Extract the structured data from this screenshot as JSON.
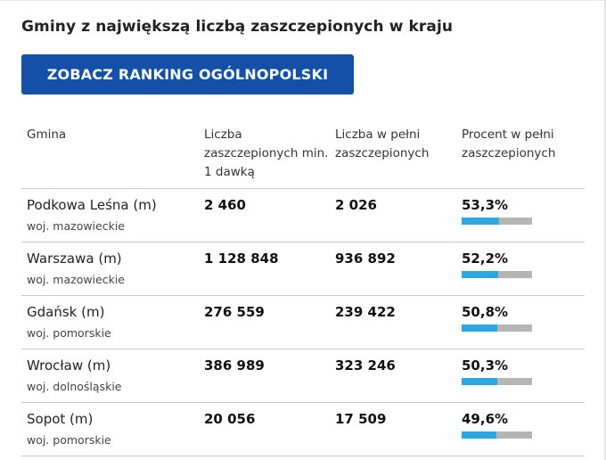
{
  "title": "Gminy z największą liczbą zaszczepionych w kraju",
  "button_label": "ZOBACZ RANKING OGÓLNOPOLSKI",
  "columns": [
    "Gmina",
    "Liczba zaszczepionych min. 1 dawką",
    "Liczba w pełni zaszczepionych",
    "Procent w pełni zaszczepionych"
  ],
  "rows": [
    {
      "gmina": "Podkowa Leśna (m)",
      "woj": "woj. mazowieckie",
      "dose1": "2 460",
      "full": "2 026",
      "percent": "53,3%",
      "fraction": 0.533
    },
    {
      "gmina": "Warszawa (m)",
      "woj": "woj. mazowieckie",
      "dose1": "1 128 848",
      "full": "936 892",
      "percent": "52,2%",
      "fraction": 0.522
    },
    {
      "gmina": "Gdańsk (m)",
      "woj": "woj. pomorskie",
      "dose1": "276 559",
      "full": "239 422",
      "percent": "50,8%",
      "fraction": 0.508
    },
    {
      "gmina": "Wrocław (m)",
      "woj": "woj. dolnośląskie",
      "dose1": "386 989",
      "full": "323 246",
      "percent": "50,3%",
      "fraction": 0.503
    },
    {
      "gmina": "Sopot (m)",
      "woj": "woj. pomorskie",
      "dose1": "20 056",
      "full": "17 509",
      "percent": "49,6%",
      "fraction": 0.496
    }
  ],
  "colors": {
    "button_bg": "#1450a8",
    "bar_fill": "#2da7e0",
    "bar_track": "#b5b5b5"
  }
}
